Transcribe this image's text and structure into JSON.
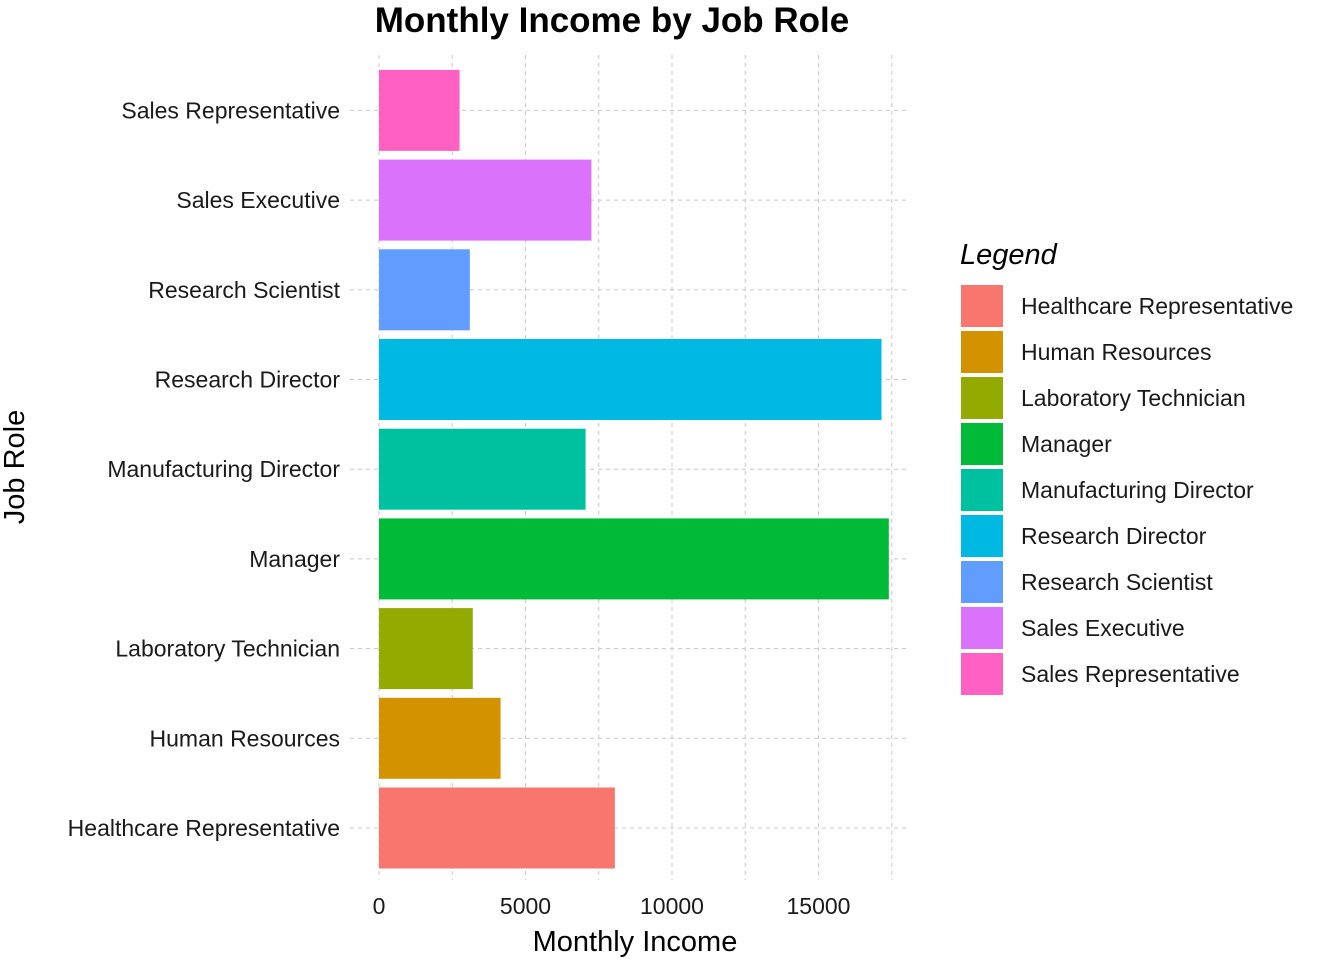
{
  "chart_data": {
    "type": "bar",
    "orientation": "horizontal",
    "title": "Monthly Income by Job Role",
    "xlabel": "Monthly Income",
    "ylabel": "Job Role",
    "categories": [
      "Healthcare Representative",
      "Human Resources",
      "Laboratory Technician",
      "Manager",
      "Manufacturing Director",
      "Research Director",
      "Research Scientist",
      "Sales Executive",
      "Sales Representative"
    ],
    "values": [
      8050,
      4150,
      3200,
      17400,
      7050,
      17150,
      3100,
      7250,
      2750
    ],
    "colors": [
      "#F8766D",
      "#D39200",
      "#93AA00",
      "#00BA38",
      "#00C19F",
      "#00B9E3",
      "#619CFF",
      "#DB72FB",
      "#FF61C3"
    ],
    "xlim": [
      0,
      18000
    ],
    "xticks": [
      0,
      5000,
      10000,
      15000
    ],
    "grid": true,
    "legend": {
      "title": "Legend",
      "position": "right"
    }
  }
}
